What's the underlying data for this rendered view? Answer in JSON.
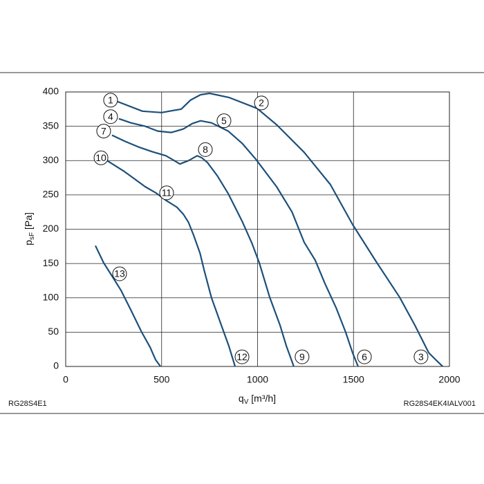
{
  "chart_data": {
    "type": "line",
    "x_label": {
      "base": "q",
      "sub": "V",
      "unit": " [m³/h]"
    },
    "y_label": {
      "base": "p",
      "sub": "sF",
      "unit": " [Pa]"
    },
    "footer_left": "RG28S4E1",
    "footer_right": "RG28S4EK4IALV001",
    "xlim": [
      0,
      2000
    ],
    "xticks": [
      0,
      500,
      1000,
      1500,
      2000
    ],
    "ylim": [
      0,
      400
    ],
    "yticks": [
      0,
      50,
      100,
      150,
      200,
      250,
      300,
      350,
      400
    ],
    "grid": true,
    "series": [
      {
        "color": "#1b4f7a",
        "x": [
          270,
          400,
          500,
          602,
          650,
          703,
          750,
          850,
          998,
          1100,
          1243,
          1380,
          1495,
          1620,
          1740,
          1820,
          1892,
          1935,
          1965
        ],
        "values": [
          386,
          372,
          370,
          375,
          388,
          396,
          398,
          392,
          376,
          352,
          312,
          265,
          207,
          152,
          101,
          60,
          20,
          8,
          0
        ]
      },
      {
        "color": "#1b4f7a",
        "x": [
          277,
          340,
          414,
          480,
          551,
          613,
          660,
          703,
          760,
          847,
          920,
          991,
          1099,
          1180,
          1243,
          1300,
          1351,
          1410,
          1459,
          1495,
          1524
        ],
        "values": [
          361,
          355,
          350,
          343,
          341,
          346,
          354,
          358,
          355,
          343,
          325,
          302,
          262,
          225,
          181,
          155,
          121,
          85,
          50,
          20,
          0
        ]
      },
      {
        "color": "#1b4f7a",
        "x": [
          241,
          310,
          378,
          450,
          523,
          560,
          595,
          640,
          685,
          710,
          739,
          790,
          847,
          919,
          970,
          1009,
          1063,
          1117,
          1150,
          1189
        ],
        "values": [
          337,
          328,
          320,
          313,
          307,
          301,
          295,
          300,
          307,
          304,
          297,
          278,
          252,
          212,
          180,
          151,
          101,
          60,
          30,
          0
        ]
      },
      {
        "color": "#1b4f7a",
        "x": [
          216,
          306,
          360,
          414,
          470,
          523,
          580,
          613,
          640,
          667,
          700,
          721,
          760,
          811,
          850,
          883
        ],
        "values": [
          300,
          284,
          273,
          262,
          253,
          242,
          232,
          222,
          210,
          191,
          165,
          141,
          100,
          60,
          30,
          0
        ]
      },
      {
        "color": "#1b4f7a",
        "x": [
          155,
          198,
          250,
          288,
          340,
          396,
          440,
          468,
          494
        ],
        "values": [
          176,
          151,
          128,
          111,
          82,
          50,
          28,
          10,
          0
        ]
      }
    ],
    "annotations": [
      {
        "text": "1",
        "x": 234,
        "y": 388
      },
      {
        "text": "2",
        "x": 1020,
        "y": 384
      },
      {
        "text": "3",
        "x": 1852,
        "y": 14
      },
      {
        "text": "4",
        "x": 234,
        "y": 364
      },
      {
        "text": "5",
        "x": 825,
        "y": 358
      },
      {
        "text": "6",
        "x": 1557,
        "y": 14
      },
      {
        "text": "7",
        "x": 198,
        "y": 343
      },
      {
        "text": "8",
        "x": 728,
        "y": 316
      },
      {
        "text": "9",
        "x": 1232,
        "y": 14
      },
      {
        "text": "10",
        "x": 184,
        "y": 304
      },
      {
        "text": "11",
        "x": 526,
        "y": 253
      },
      {
        "text": "12",
        "x": 919,
        "y": 14
      },
      {
        "text": "13",
        "x": 281,
        "y": 135
      }
    ]
  }
}
